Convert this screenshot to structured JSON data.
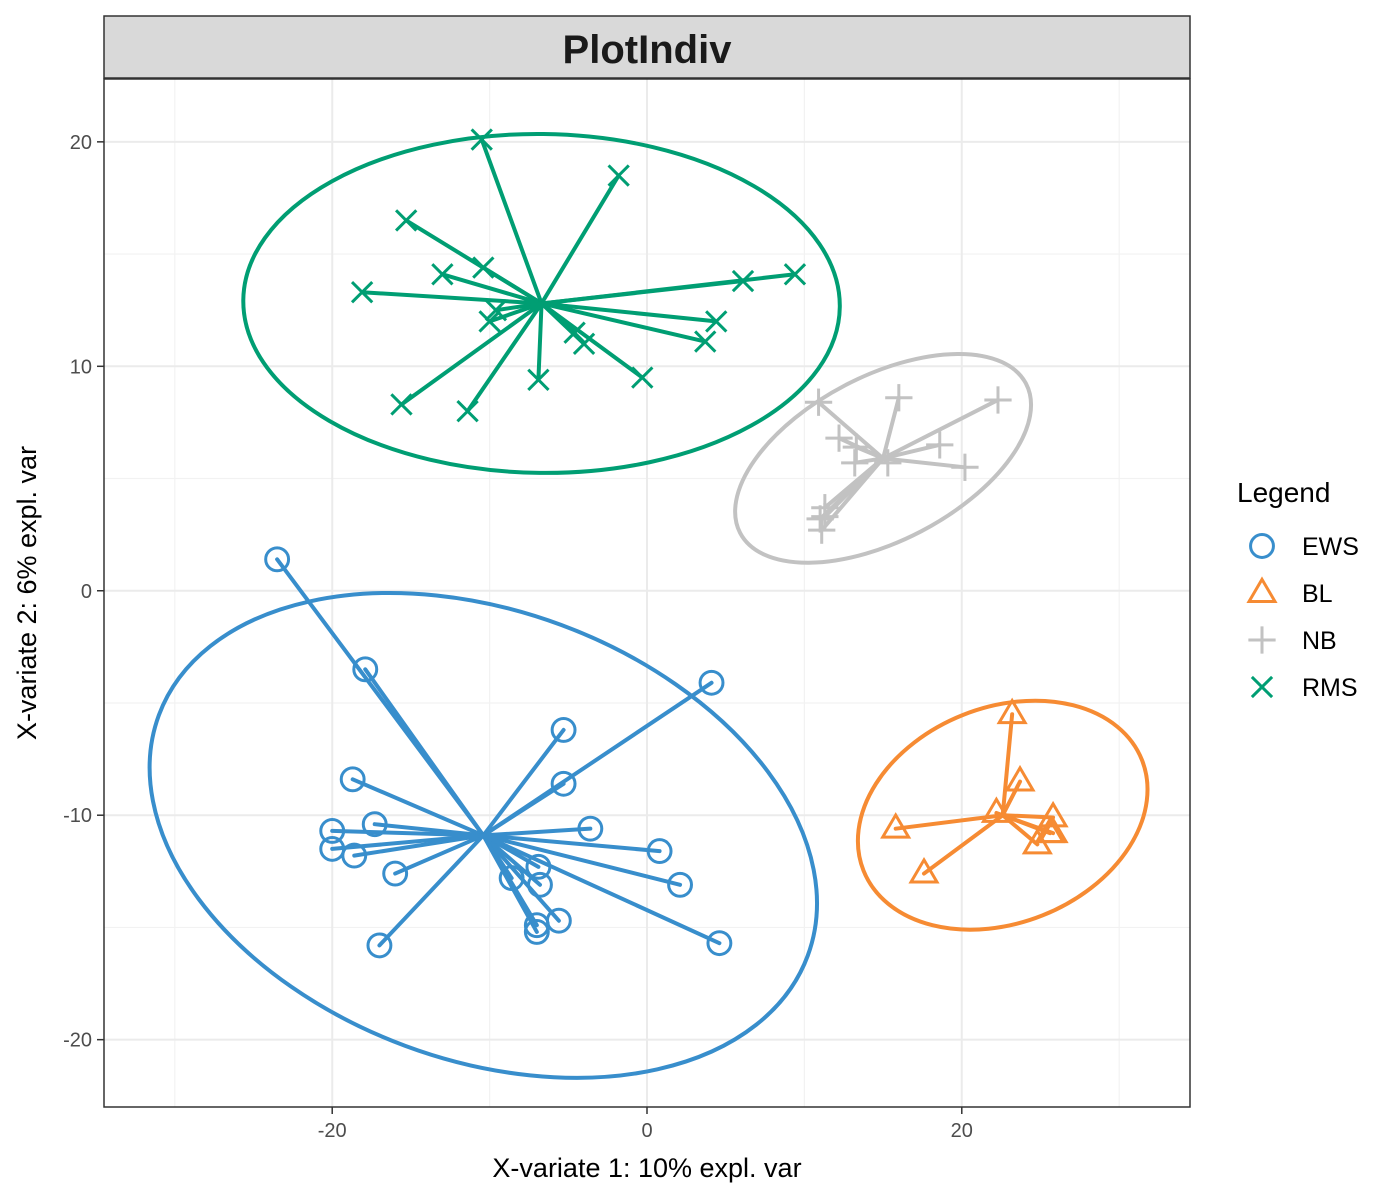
{
  "chart_data": {
    "type": "scatter",
    "title": "PlotIndiv",
    "xlabel": "X-variate 1: 10% expl. var",
    "ylabel": "X-variate 2: 6% expl. var",
    "xlim": [
      -34.5,
      34.5
    ],
    "ylim": [
      -23,
      22.8
    ],
    "xticks": [
      -20,
      0,
      20
    ],
    "yticks": [
      -20,
      -10,
      0,
      10,
      20
    ],
    "xtick_labels": [
      "-20",
      "0",
      "20"
    ],
    "ytick_labels": [
      "-20",
      "-10",
      "0",
      "10",
      "20"
    ],
    "grid": true,
    "legend": {
      "title": "Legend",
      "position": "right"
    },
    "series": [
      {
        "name": "EWS",
        "shape": "circle",
        "color": "#388ECC",
        "centroid": [
          -10.4,
          -10.9
        ],
        "ellipse_extremes": {
          "left_x": -31.4,
          "right_x": 11.0,
          "top_y": 0.3,
          "bottom_y": -21.3
        },
        "points": [
          [
            -23.5,
            1.4
          ],
          [
            -17.9,
            -3.5
          ],
          [
            4.1,
            -4.1
          ],
          [
            -5.3,
            -6.2
          ],
          [
            -18.7,
            -8.4
          ],
          [
            -5.3,
            -8.6
          ],
          [
            -17.3,
            -10.4
          ],
          [
            -20.0,
            -10.7
          ],
          [
            -20.0,
            -11.5
          ],
          [
            -3.6,
            -10.6
          ],
          [
            0.8,
            -11.6
          ],
          [
            -18.6,
            -11.8
          ],
          [
            -16.0,
            -12.6
          ],
          [
            -6.9,
            -12.3
          ],
          [
            -8.6,
            -12.8
          ],
          [
            -6.8,
            -13.1
          ],
          [
            2.1,
            -13.1
          ],
          [
            -5.6,
            -14.7
          ],
          [
            -7.0,
            -14.9
          ],
          [
            -7.0,
            -15.2
          ],
          [
            -17.0,
            -15.8
          ],
          [
            4.6,
            -15.7
          ]
        ]
      },
      {
        "name": "BL",
        "shape": "triangle",
        "color": "#F68B33",
        "centroid": [
          22.6,
          -10.0
        ],
        "ellipse_extremes": {
          "left_x": 13.3,
          "right_x": 31.7,
          "top_y": -4.9,
          "bottom_y": -15.1
        },
        "points": [
          [
            23.2,
            -5.5
          ],
          [
            23.7,
            -8.5
          ],
          [
            22.2,
            -9.9
          ],
          [
            25.8,
            -10.1
          ],
          [
            15.8,
            -10.6
          ],
          [
            25.6,
            -10.8
          ],
          [
            25.8,
            -10.8
          ],
          [
            24.8,
            -11.3
          ],
          [
            17.6,
            -12.6
          ]
        ]
      },
      {
        "name": "NB",
        "shape": "plus",
        "color": "#C2C2C2",
        "centroid": [
          15.0,
          5.9
        ],
        "ellipse_extremes": {
          "left_x": 5.4,
          "right_x": 24.2,
          "top_y": 10.6,
          "bottom_y": 1.3
        },
        "points": [
          [
            10.9,
            8.4
          ],
          [
            16.0,
            8.6
          ],
          [
            22.3,
            8.5
          ],
          [
            12.2,
            6.8
          ],
          [
            13.3,
            6.4
          ],
          [
            18.6,
            6.5
          ],
          [
            13.2,
            5.7
          ],
          [
            15.3,
            5.7
          ],
          [
            20.2,
            5.5
          ],
          [
            11.3,
            3.7
          ],
          [
            11.3,
            3.3
          ],
          [
            11.0,
            3.2
          ],
          [
            11.1,
            2.7
          ]
        ]
      },
      {
        "name": "RMS",
        "shape": "x",
        "color": "#009E73",
        "centroid": [
          -6.7,
          12.8
        ],
        "ellipse_extremes": {
          "left_x": -25.3,
          "right_x": 12.6,
          "top_y": 20.3,
          "bottom_y": 5.2
        },
        "points": [
          [
            -10.5,
            20.1
          ],
          [
            -1.8,
            18.5
          ],
          [
            -15.3,
            16.5
          ],
          [
            -10.4,
            14.4
          ],
          [
            -13.0,
            14.1
          ],
          [
            6.1,
            13.8
          ],
          [
            9.4,
            14.1
          ],
          [
            -18.1,
            13.3
          ],
          [
            -9.6,
            12.5
          ],
          [
            -10.0,
            12.0
          ],
          [
            4.4,
            12.0
          ],
          [
            -4.6,
            11.5
          ],
          [
            -4.0,
            11.0
          ],
          [
            3.7,
            11.1
          ],
          [
            -0.3,
            9.5
          ],
          [
            -6.9,
            9.4
          ],
          [
            -15.6,
            8.3
          ],
          [
            -11.4,
            8.0
          ]
        ]
      }
    ]
  }
}
